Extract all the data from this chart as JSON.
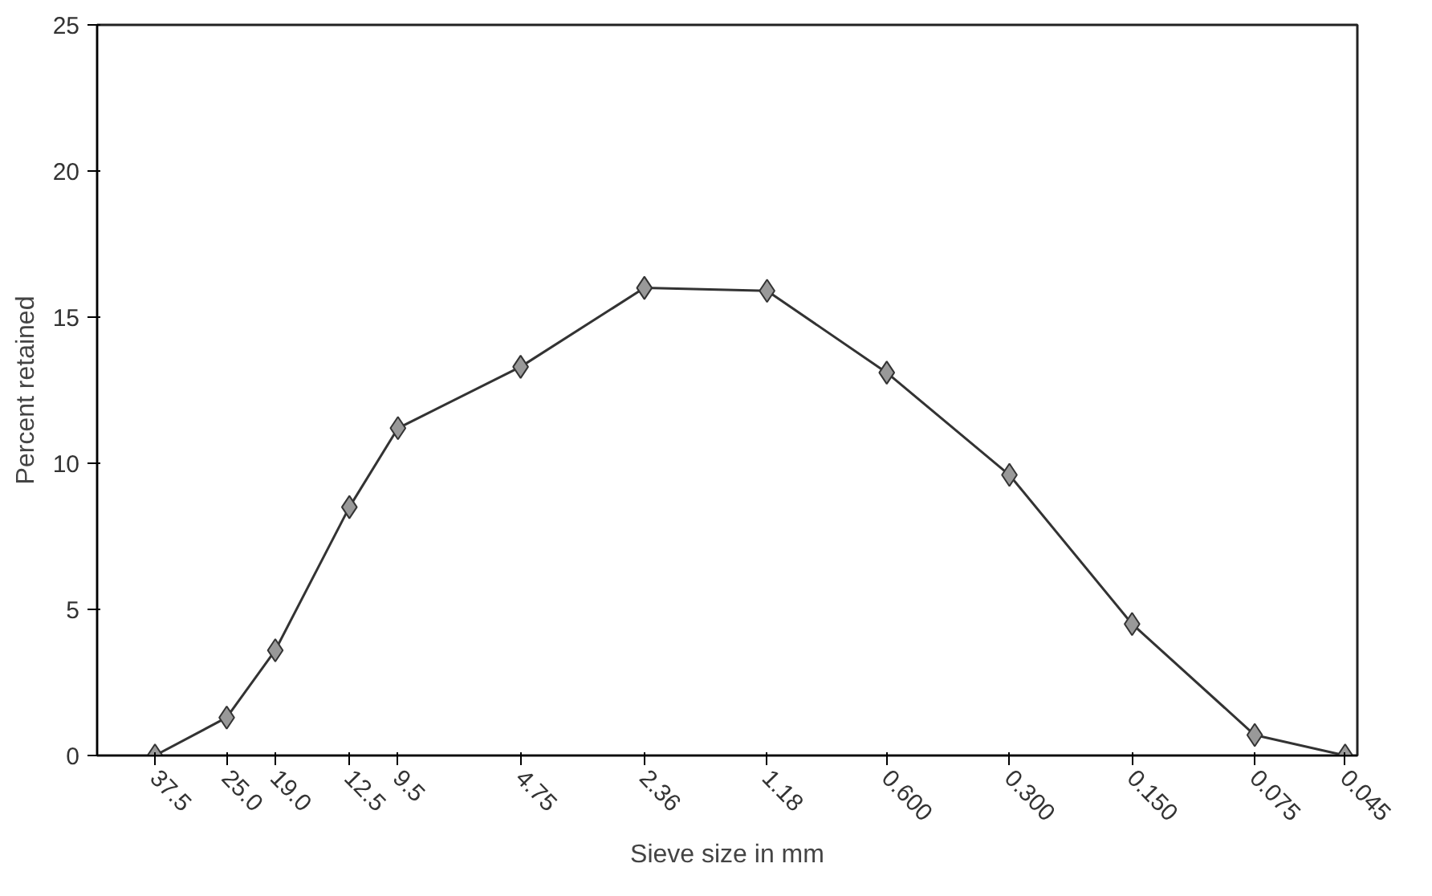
{
  "chart_data": {
    "type": "line",
    "xlabel": "Sieve size in mm",
    "ylabel": "Percent retained",
    "log": "x",
    "marker": "diamond",
    "grid": false,
    "x": [
      37.5,
      25.0,
      19.0,
      12.5,
      9.5,
      4.75,
      2.36,
      1.18,
      0.6,
      0.3,
      0.15,
      0.075,
      0.045
    ],
    "series": [
      {
        "color": "#333333",
        "values": [
          0,
          1.3,
          3.6,
          8.5,
          11.2,
          13.3,
          16,
          15.9,
          13.1,
          9.6,
          4.5,
          0.7,
          0
        ]
      }
    ],
    "xlim": [
      52,
      0.042
    ],
    "ylim": [
      0,
      25
    ],
    "yticks": [
      0,
      5,
      10,
      15,
      20,
      25
    ],
    "xticks": [
      {
        "value": 37.5,
        "label": "37.5"
      },
      {
        "value": 25.0,
        "label": "25.0"
      },
      {
        "value": 19.0,
        "label": "19.0"
      },
      {
        "value": 12.5,
        "label": "12.5"
      },
      {
        "value": 9.5,
        "label": "9.5"
      },
      {
        "value": 4.75,
        "label": "4.75"
      },
      {
        "value": 2.36,
        "label": "2.36"
      },
      {
        "value": 1.18,
        "label": "1.18"
      },
      {
        "value": 0.6,
        "label": "0.600"
      },
      {
        "value": 0.3,
        "label": "0.300"
      },
      {
        "value": 0.15,
        "label": "0.150"
      },
      {
        "value": 0.075,
        "label": "0.075"
      },
      {
        "value": 0.045,
        "label": "0.045"
      }
    ]
  }
}
